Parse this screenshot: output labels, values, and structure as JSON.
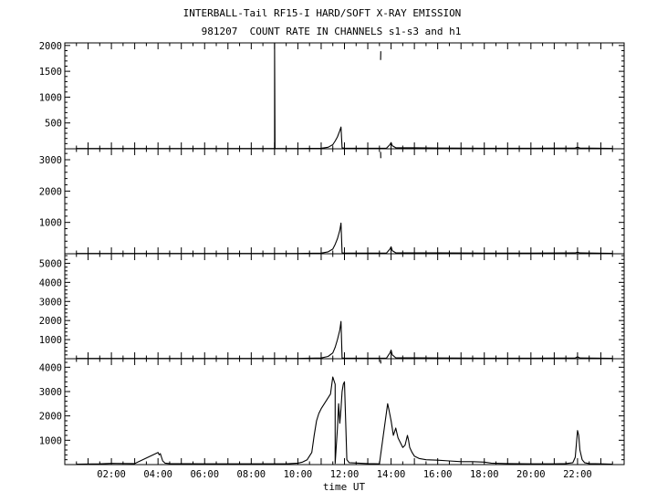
{
  "chart_data": {
    "type": "line",
    "title": "INTERBALL-Tail RF15-I HARD/SOFT X-RAY EMISSION",
    "subtitle": "981207  COUNT RATE IN CHANNELS s1-s3 and h1",
    "xlabel": "time UT",
    "xlim": [
      0,
      24
    ],
    "x_ticks": [
      "02:00",
      "04:00",
      "06:00",
      "08:00",
      "10:00",
      "12:00",
      "14:00",
      "16:00",
      "18:00",
      "20:00",
      "22:00"
    ],
    "x_tick_values": [
      2,
      4,
      6,
      8,
      10,
      12,
      14,
      16,
      18,
      20,
      22
    ],
    "grid": false,
    "panels": [
      {
        "name": "s1",
        "ylim": [
          0,
          2050
        ],
        "y_ticks": [
          500,
          1000,
          1500,
          2000
        ],
        "series": [
          {
            "x": [
              0.5,
              2,
              4,
              6,
              8,
              9.0,
              9.0,
              9.02,
              10,
              11,
              11.3,
              11.5,
              11.6,
              11.7,
              11.8,
              11.85,
              11.9,
              12,
              13,
              13.8,
              13.95,
              14.0,
              14.05,
              14.2,
              15,
              16,
              18,
              20,
              21.9,
              22.0,
              22.1,
              23.5
            ],
            "y": [
              5,
              5,
              5,
              5,
              5,
              5,
              2050,
              5,
              5,
              10,
              30,
              80,
              150,
              230,
              350,
              420,
              20,
              10,
              10,
              10,
              80,
              120,
              60,
              20,
              20,
              15,
              10,
              10,
              15,
              30,
              15,
              8
            ]
          },
          {
            "x": [
              13.55,
              13.56
            ],
            "y": [
              1720,
              1890
            ]
          }
        ]
      },
      {
        "name": "s2",
        "ylim": [
          0,
          3350
        ],
        "y_ticks": [
          1000,
          2000,
          3000
        ],
        "series": [
          {
            "x": [
              0.5,
              4,
              8,
              10,
              11,
              11.3,
              11.5,
              11.6,
              11.7,
              11.8,
              11.85,
              11.9,
              12,
              13,
              13.8,
              13.95,
              14.0,
              14.05,
              14.2,
              15,
              16,
              18,
              20,
              21.9,
              22.0,
              22.1,
              23.5
            ],
            "y": [
              10,
              10,
              10,
              10,
              20,
              60,
              150,
              300,
              480,
              750,
              980,
              30,
              20,
              20,
              20,
              150,
              220,
              100,
              30,
              30,
              25,
              20,
              20,
              25,
              50,
              25,
              15
            ]
          },
          {
            "x": [
              13.55,
              13.56
            ],
            "y": [
              3250,
              3050
            ]
          }
        ]
      },
      {
        "name": "s3",
        "ylim": [
          0,
          5500
        ],
        "y_ticks": [
          1000,
          2000,
          3000,
          4000,
          5000
        ],
        "series": [
          {
            "x": [
              0.5,
              4,
              8,
              10,
              11,
              11.3,
              11.5,
              11.6,
              11.7,
              11.8,
              11.85,
              11.9,
              12,
              13,
              13.8,
              13.95,
              14.0,
              14.05,
              14.2,
              15,
              16,
              18,
              20,
              21.9,
              22.0,
              22.1,
              23.5
            ],
            "y": [
              15,
              15,
              15,
              15,
              40,
              120,
              300,
              600,
              1000,
              1500,
              1950,
              40,
              30,
              30,
              30,
              300,
              450,
              200,
              50,
              50,
              40,
              30,
              30,
              40,
              100,
              40,
              20
            ]
          }
        ]
      },
      {
        "name": "h1",
        "ylim": [
          0,
          4350
        ],
        "y_ticks": [
          1000,
          2000,
          3000,
          4000
        ],
        "series": [
          {
            "x": [
              0.5,
              1.5,
              2,
              3,
              4.0,
              4.05,
              4.1,
              4.15,
              4.2,
              4.3,
              4.5,
              6,
              8,
              9.5,
              10.0,
              10.2,
              10.4,
              10.6,
              10.7,
              10.8,
              10.9,
              11.0,
              11.2,
              11.4,
              11.5,
              11.6,
              11.6,
              11.7,
              11.75,
              11.8,
              11.85,
              11.9,
              11.95,
              12.0,
              12.05,
              12.1,
              12.2,
              13.0,
              13.5,
              13.85,
              13.9,
              14.0,
              14.1,
              14.2,
              14.3,
              14.4,
              14.5,
              14.6,
              14.7,
              14.75,
              14.8,
              14.9,
              15.0,
              15.2,
              15.5,
              16.0,
              16.5,
              17.0,
              17.5,
              18.0,
              18.3,
              19.0,
              20.0,
              21.0,
              21.5,
              21.8,
              21.9,
              22.0,
              22.05,
              22.1,
              22.2,
              22.3,
              22.5,
              23.0,
              23.5
            ],
            "y": [
              20,
              30,
              50,
              40,
              500,
              400,
              450,
              300,
              150,
              60,
              40,
              30,
              30,
              30,
              60,
              100,
              200,
              500,
              1200,
              1800,
              2100,
              2300,
              2600,
              2900,
              3600,
              3300,
              50,
              1500,
              2500,
              1700,
              2300,
              3000,
              3300,
              3400,
              1800,
              200,
              80,
              40,
              30,
              2500,
              2300,
              1800,
              1200,
              1500,
              1100,
              900,
              700,
              800,
              1200,
              1000,
              700,
              500,
              350,
              250,
              200,
              180,
              150,
              120,
              120,
              100,
              60,
              40,
              30,
              30,
              40,
              80,
              300,
              1400,
              1200,
              600,
              200,
              80,
              40,
              30,
              20
            ]
          },
          {
            "x": [
              13.55,
              13.56
            ],
            "y": [
              4300,
              4150
            ]
          }
        ]
      }
    ]
  }
}
